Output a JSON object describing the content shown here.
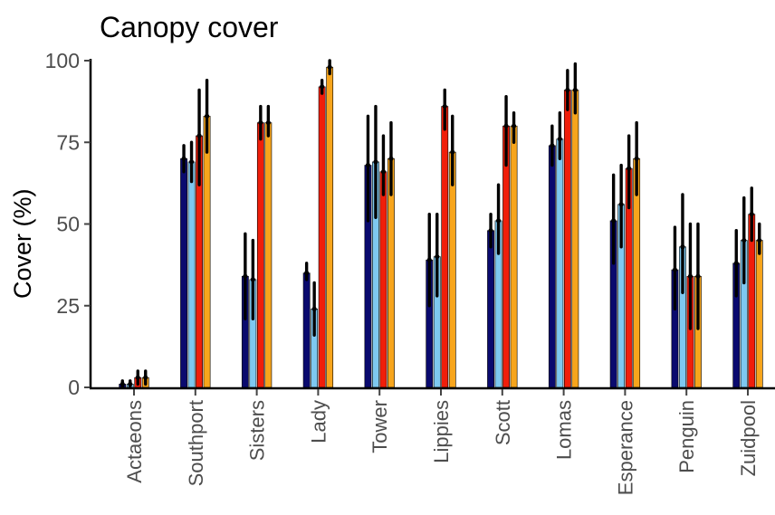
{
  "chart_data": {
    "type": "bar",
    "title": "Canopy cover",
    "ylabel": "Cover (%)",
    "xlabel": "",
    "ylim": [
      0,
      100
    ],
    "yticks": [
      0,
      25,
      50,
      75,
      100
    ],
    "grid": false,
    "legend": "none",
    "categories": [
      "Actaeons",
      "Southport",
      "Sisters",
      "Lady",
      "Tower",
      "Lippies",
      "Scott",
      "Lomas",
      "Esperance",
      "Penguin",
      "Zuidpool"
    ],
    "colors": [
      "#0a0a6e",
      "#7ec8f0",
      "#f01e0a",
      "#f7a51c"
    ],
    "series": [
      {
        "values": [
          1,
          70,
          34,
          35,
          68,
          39,
          48,
          74,
          51,
          36,
          38
        ],
        "err_low": [
          0,
          66,
          21,
          33,
          51,
          25,
          43,
          68,
          38,
          24,
          28
        ],
        "err_high": [
          2,
          74,
          47,
          38,
          83,
          53,
          53,
          80,
          65,
          49,
          48
        ]
      },
      {
        "values": [
          1,
          69,
          33,
          24,
          69,
          40,
          51,
          76,
          56,
          43,
          45
        ],
        "err_low": [
          0,
          63,
          21,
          16,
          52,
          28,
          41,
          70,
          43,
          29,
          32
        ],
        "err_high": [
          2,
          75,
          45,
          32,
          86,
          53,
          62,
          84,
          68,
          59,
          58
        ]
      },
      {
        "values": [
          3,
          77,
          81,
          92,
          66,
          86,
          80,
          91,
          67,
          34,
          53
        ],
        "err_low": [
          1,
          62,
          76,
          90,
          59,
          79,
          68,
          85,
          55,
          18,
          45
        ],
        "err_high": [
          5,
          91,
          86,
          94,
          77,
          91,
          89,
          97,
          77,
          50,
          61
        ]
      },
      {
        "values": [
          3,
          83,
          81,
          98,
          70,
          72,
          80,
          91,
          70,
          34,
          45
        ],
        "err_low": [
          1,
          72,
          77,
          96,
          59,
          62,
          75,
          84,
          59,
          18,
          41
        ],
        "err_high": [
          5,
          94,
          86,
          100,
          81,
          83,
          84,
          99,
          81,
          50,
          50
        ]
      }
    ]
  }
}
